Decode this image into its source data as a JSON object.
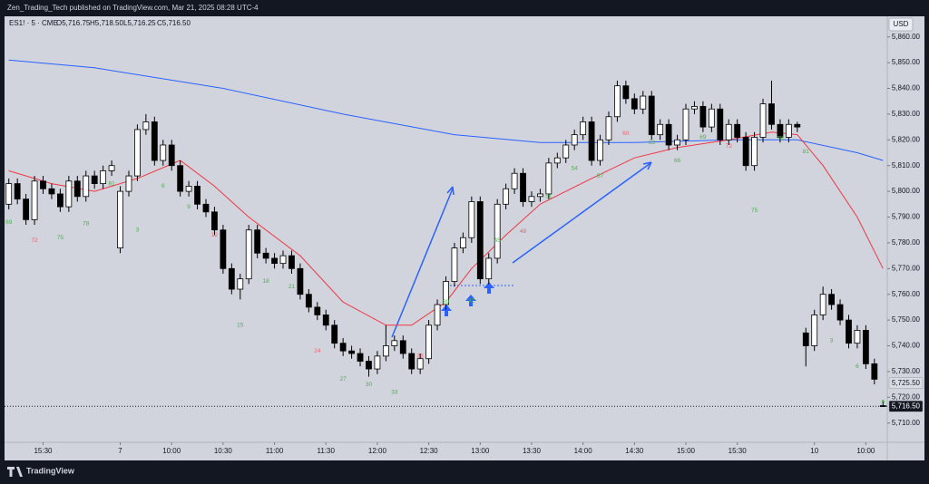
{
  "header": {
    "title": "Zen_Trading_Tech published on TradingView.com, Mar 21, 2025 08:28 UTC-4",
    "symbol": "ES1! · 5 · CME",
    "ohlc": [
      "O5,716.75",
      "H5,718.50",
      "L5,716.25",
      "C5,716.50"
    ],
    "currency": "USD",
    "brand": "TradingView"
  },
  "chart_data": {
    "type": "candlestick",
    "xlim": [
      -0.5,
      102.5
    ],
    "ylim": [
      5702.5,
      5868
    ],
    "xticks": [
      {
        "value": 4,
        "label": "15:30"
      },
      {
        "value": 13,
        "label": "7"
      },
      {
        "value": 19,
        "label": "10:00"
      },
      {
        "value": 25,
        "label": "10:30"
      },
      {
        "value": 31,
        "label": "11:00"
      },
      {
        "value": 37,
        "label": "11:30"
      },
      {
        "value": 43,
        "label": "12:00"
      },
      {
        "value": 49,
        "label": "12:30"
      },
      {
        "value": 55,
        "label": "13:00"
      },
      {
        "value": 61,
        "label": "13:30"
      },
      {
        "value": 67,
        "label": "14:00"
      },
      {
        "value": 73,
        "label": "14:30"
      },
      {
        "value": 79,
        "label": "15:00"
      },
      {
        "value": 85,
        "label": "15:30"
      },
      {
        "value": 94,
        "label": "10"
      },
      {
        "value": 100,
        "label": "10:00"
      }
    ],
    "yticks": [
      {
        "value": 5860,
        "label": "5,860.00"
      },
      {
        "value": 5850,
        "label": "5,850.00"
      },
      {
        "value": 5840,
        "label": "5,840.00"
      },
      {
        "value": 5830,
        "label": "5,830.00"
      },
      {
        "value": 5820,
        "label": "5,820.00"
      },
      {
        "value": 5810,
        "label": "5,810.00"
      },
      {
        "value": 5800,
        "label": "5,800.00"
      },
      {
        "value": 5790,
        "label": "5,790.00"
      },
      {
        "value": 5780,
        "label": "5,780.00"
      },
      {
        "value": 5770,
        "label": "5,770.00"
      },
      {
        "value": 5760,
        "label": "5,760.00"
      },
      {
        "value": 5750,
        "label": "5,750.00"
      },
      {
        "value": 5740,
        "label": "5,740.00"
      },
      {
        "value": 5730,
        "label": "5,730.00"
      },
      {
        "value": 5720,
        "label": "5,720.00"
      },
      {
        "value": 5710,
        "label": "5,710.00"
      }
    ],
    "up_color": "#ffffff",
    "down_color": "#000000",
    "open": [
      5795,
      5803,
      5797,
      5789,
      5804,
      5801,
      5799,
      5794,
      5804,
      5798,
      5806,
      5803,
      5808,
      5778,
      5800,
      5806,
      5824,
      5827,
      5812,
      5818,
      5810,
      5800,
      5802,
      5795,
      5792,
      5785,
      5770,
      5762,
      5766,
      5785,
      5776,
      5774,
      5772,
      5775,
      5770,
      5760,
      5755,
      5752,
      5748,
      5741,
      5738,
      5737,
      5734,
      5731,
      5736,
      5740,
      5742,
      5737,
      5731,
      5735,
      5748,
      5756,
      5765,
      5778,
      5782,
      5796,
      5766,
      5774,
      5795,
      5801,
      5807,
      5796,
      5798,
      5799,
      5811,
      5813,
      5818,
      5822,
      5827,
      5812,
      5820,
      5829,
      5841,
      5836,
      5832,
      5837,
      5822,
      5826,
      5818,
      5820,
      5832,
      5833,
      5825,
      5832,
      5820,
      5826,
      5821,
      5810,
      5821,
      5834,
      5826,
      5821,
      5826,
      5745,
      5740,
      5752,
      5760,
      5756,
      5750,
      5741,
      5746,
      5733,
      5716.75
    ],
    "high": [
      5805,
      5805,
      5799,
      5806,
      5806,
      5803,
      5801,
      5806,
      5806,
      5808,
      5808,
      5810,
      5812,
      5802,
      5808,
      5826,
      5830,
      5829,
      5820,
      5820,
      5812,
      5804,
      5804,
      5797,
      5794,
      5787,
      5772,
      5768,
      5787,
      5787,
      5778,
      5776,
      5777,
      5777,
      5772,
      5762,
      5757,
      5754,
      5750,
      5743,
      5740,
      5739,
      5736,
      5738,
      5748,
      5744,
      5744,
      5739,
      5737,
      5750,
      5758,
      5767,
      5780,
      5784,
      5798,
      5798,
      5776,
      5797,
      5803,
      5809,
      5809,
      5800,
      5801,
      5813,
      5815,
      5820,
      5824,
      5829,
      5829,
      5822,
      5831,
      5843,
      5843,
      5838,
      5839,
      5839,
      5828,
      5828,
      5822,
      5834,
      5835,
      5835,
      5834,
      5834,
      5828,
      5828,
      5823,
      5823,
      5836,
      5843,
      5828,
      5828,
      5827,
      5747,
      5754,
      5763,
      5762,
      5758,
      5752,
      5748,
      5748,
      5735,
      5718.5
    ],
    "low": [
      5793,
      5795,
      5787,
      5787,
      5799,
      5797,
      5792,
      5792,
      5796,
      5796,
      5801,
      5801,
      5806,
      5776,
      5798,
      5804,
      5822,
      5810,
      5810,
      5808,
      5798,
      5798,
      5793,
      5790,
      5783,
      5768,
      5760,
      5758,
      5764,
      5774,
      5772,
      5770,
      5770,
      5768,
      5758,
      5753,
      5750,
      5746,
      5739,
      5736,
      5735,
      5732,
      5728,
      5729,
      5734,
      5738,
      5735,
      5729,
      5729,
      5733,
      5746,
      5754,
      5763,
      5776,
      5780,
      5764,
      5764,
      5772,
      5793,
      5799,
      5794,
      5794,
      5796,
      5797,
      5809,
      5811,
      5816,
      5820,
      5810,
      5810,
      5818,
      5827,
      5834,
      5830,
      5830,
      5820,
      5820,
      5816,
      5816,
      5818,
      5830,
      5823,
      5823,
      5818,
      5818,
      5819,
      5808,
      5808,
      5819,
      5824,
      5819,
      5819,
      5823,
      5732,
      5738,
      5750,
      5754,
      5748,
      5739,
      5739,
      5731,
      5725,
      5716.25
    ],
    "close": [
      5803,
      5797,
      5789,
      5804,
      5801,
      5799,
      5794,
      5804,
      5798,
      5806,
      5803,
      5808,
      5810,
      5800,
      5806,
      5824,
      5827,
      5812,
      5818,
      5810,
      5800,
      5802,
      5795,
      5792,
      5785,
      5770,
      5762,
      5766,
      5785,
      5776,
      5774,
      5772,
      5775,
      5770,
      5760,
      5755,
      5752,
      5748,
      5741,
      5738,
      5737,
      5734,
      5731,
      5736,
      5740,
      5742,
      5737,
      5731,
      5735,
      5748,
      5756,
      5765,
      5778,
      5782,
      5796,
      5766,
      5774,
      5795,
      5801,
      5807,
      5796,
      5798,
      5799,
      5811,
      5813,
      5818,
      5822,
      5827,
      5812,
      5820,
      5829,
      5841,
      5836,
      5832,
      5837,
      5822,
      5826,
      5818,
      5820,
      5832,
      5833,
      5825,
      5832,
      5820,
      5826,
      5821,
      5810,
      5821,
      5834,
      5826,
      5821,
      5826,
      5825,
      5740,
      5752,
      5760,
      5756,
      5750,
      5741,
      5746,
      5733,
      5727,
      5716.5
    ],
    "lines": [
      {
        "color": "#2962ff",
        "x": [
          0,
          10,
          25,
          39,
          52,
          62,
          73,
          84,
          92,
          99,
          102
        ],
        "values": [
          5851,
          5848,
          5840,
          5830,
          5822,
          5819,
          5819,
          5820,
          5820,
          5815,
          5812
        ]
      },
      {
        "color": "#f23645",
        "x": [
          0,
          5,
          10,
          15,
          20,
          24,
          28,
          34,
          39,
          44,
          47,
          51,
          54,
          58,
          62,
          68,
          73,
          78,
          84,
          89,
          92,
          95,
          99,
          102
        ],
        "values": [
          5808,
          5803,
          5800,
          5805,
          5812,
          5802,
          5790,
          5775,
          5757,
          5748,
          5748,
          5757,
          5770,
          5783,
          5795,
          5805,
          5813,
          5817,
          5820,
          5823,
          5822,
          5810,
          5790,
          5770
        ]
      }
    ],
    "annotations": [
      {
        "text": "69",
        "x": 0,
        "y": 5788,
        "color": "#4caf50"
      },
      {
        "text": "72",
        "x": 3,
        "y": 5781,
        "color": "#f0606a"
      },
      {
        "text": "75",
        "x": 6,
        "y": 5782,
        "color": "#4caf50"
      },
      {
        "text": "78",
        "x": 9,
        "y": 5787.5,
        "color": "#4caf50"
      },
      {
        "text": "81",
        "x": 12,
        "y": 5803,
        "color": "#4caf50"
      },
      {
        "text": "3",
        "x": 15,
        "y": 5785,
        "color": "#4caf50"
      },
      {
        "text": "6",
        "x": 18,
        "y": 5802,
        "color": "#4caf50"
      },
      {
        "text": "9",
        "x": 21,
        "y": 5794,
        "color": "#4caf50"
      },
      {
        "text": "12",
        "x": 24,
        "y": 5783,
        "color": "#f0606a"
      },
      {
        "text": "15",
        "x": 27,
        "y": 5748,
        "color": "#4caf50"
      },
      {
        "text": "18",
        "x": 30,
        "y": 5765,
        "color": "#4caf50"
      },
      {
        "text": "21",
        "x": 33,
        "y": 5763,
        "color": "#4caf50"
      },
      {
        "text": "24",
        "x": 36,
        "y": 5738,
        "color": "#f0606a"
      },
      {
        "text": "27",
        "x": 39,
        "y": 5727,
        "color": "#4caf50"
      },
      {
        "text": "30",
        "x": 42,
        "y": 5725,
        "color": "#4caf50"
      },
      {
        "text": "33",
        "x": 45,
        "y": 5722,
        "color": "#4caf50"
      },
      {
        "text": "36",
        "x": 48,
        "y": 5736,
        "color": "#f0606a"
      },
      {
        "text": "39",
        "x": 51,
        "y": 5757,
        "color": "#4caf50"
      },
      {
        "text": "42",
        "x": 54,
        "y": 5757.5,
        "color": "#4caf50"
      },
      {
        "text": "45",
        "x": 57,
        "y": 5781,
        "color": "#4caf50"
      },
      {
        "text": "48",
        "x": 60,
        "y": 5784.5,
        "color": "#f0606a"
      },
      {
        "text": "51",
        "x": 63,
        "y": 5798,
        "color": "#4caf50"
      },
      {
        "text": "54",
        "x": 66,
        "y": 5809,
        "color": "#4caf50"
      },
      {
        "text": "57",
        "x": 69,
        "y": 5806,
        "color": "#4caf50"
      },
      {
        "text": "60",
        "x": 72,
        "y": 5822.5,
        "color": "#f0606a"
      },
      {
        "text": "63",
        "x": 75,
        "y": 5819,
        "color": "#4caf50"
      },
      {
        "text": "66",
        "x": 78,
        "y": 5812,
        "color": "#4caf50"
      },
      {
        "text": "69",
        "x": 81,
        "y": 5821,
        "color": "#4caf50"
      },
      {
        "text": "72",
        "x": 84,
        "y": 5817.5,
        "color": "#f0606a"
      },
      {
        "text": "75",
        "x": 87,
        "y": 5792.5,
        "color": "#4caf50"
      },
      {
        "text": "78",
        "x": 90,
        "y": 5820.5,
        "color": "#4caf50"
      },
      {
        "text": "81",
        "x": 93,
        "y": 5815.5,
        "color": "#4caf50"
      },
      {
        "text": "3",
        "x": 96,
        "y": 5742,
        "color": "#4caf50"
      },
      {
        "text": "6",
        "x": 99,
        "y": 5732,
        "color": "#4caf50"
      },
      {
        "text": "9",
        "x": 102,
        "y": 5718,
        "color": "#4caf50"
      }
    ],
    "price_labels": [
      {
        "value": 5725.5,
        "label": "5,725.50",
        "color": "#d9dce3",
        "text_color": "#131722"
      },
      {
        "value": 5716.5,
        "label": "5,716.50",
        "color": "#131722",
        "text_color": "#ffffff"
      }
    ]
  }
}
